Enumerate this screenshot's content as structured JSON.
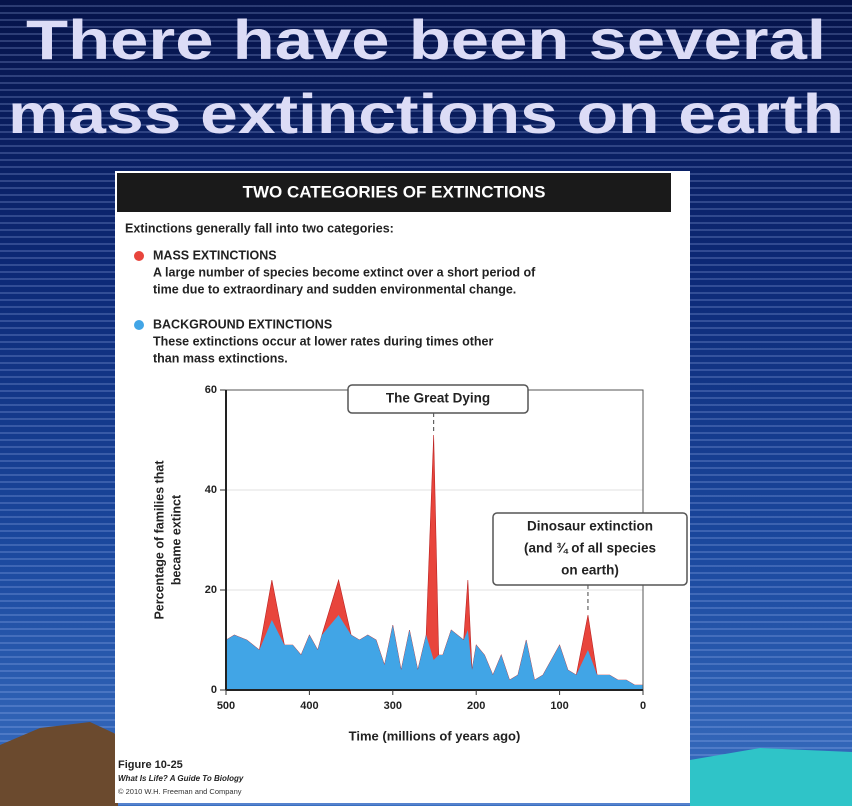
{
  "title": [
    "There have been several",
    "mass extinctions on earth"
  ],
  "chart_data": {
    "type": "area",
    "header": "TWO CATEGORIES OF EXTINCTIONS",
    "intro": "Extinctions generally fall into two categories:",
    "x": [
      500,
      490,
      475,
      460,
      445,
      430,
      420,
      410,
      400,
      390,
      385,
      365,
      350,
      340,
      330,
      320,
      310,
      300,
      290,
      280,
      270,
      260,
      251,
      245,
      240,
      230,
      215,
      210,
      205,
      200,
      190,
      180,
      170,
      160,
      150,
      140,
      130,
      120,
      100,
      90,
      80,
      66,
      55,
      40,
      30,
      20,
      10,
      0
    ],
    "series": [
      {
        "name": "MASS EXTINCTIONS",
        "color": "#e8453c",
        "description": [
          "A large number of species become extinct over a short period of",
          "time due to extraordinary and sudden environmental change."
        ],
        "values": [
          10,
          11,
          10,
          8,
          22,
          9,
          9,
          7,
          11,
          8,
          11,
          22,
          11,
          10,
          11,
          10,
          5,
          13,
          4,
          12,
          4,
          11,
          51,
          7,
          7,
          12,
          10,
          22,
          4,
          9,
          7,
          3,
          7,
          2,
          3,
          10,
          2,
          3,
          9,
          4,
          3,
          15,
          3,
          3,
          2,
          2,
          1,
          1
        ]
      },
      {
        "name": "BACKGROUND EXTINCTIONS",
        "color": "#41a5e6",
        "description": [
          "These extinctions occur at lower rates during times other",
          "than mass extinctions."
        ],
        "values": [
          10,
          11,
          10,
          8,
          14,
          9,
          9,
          7,
          11,
          8,
          11,
          15,
          11,
          10,
          11,
          10,
          5,
          13,
          4,
          12,
          4,
          11,
          6,
          7,
          7,
          12,
          10,
          12,
          4,
          9,
          7,
          3,
          7,
          2,
          3,
          10,
          2,
          3,
          9,
          4,
          3,
          8,
          3,
          3,
          2,
          2,
          1,
          1
        ]
      }
    ],
    "xlim": [
      500,
      0
    ],
    "ylim": [
      0,
      60
    ],
    "xticks": [
      500,
      400,
      300,
      200,
      100,
      0
    ],
    "yticks": [
      0,
      20,
      40,
      60
    ],
    "xlabel": "Time  (millions of years ago)",
    "ylabel": [
      "Percentage of families that",
      "became extinct"
    ],
    "annotations": [
      {
        "text": [
          "The Great Dying"
        ],
        "x": 251
      },
      {
        "text": [
          "Dinosaur extinction",
          "(and ¾ of all species",
          "on earth)"
        ],
        "x": 66
      }
    ],
    "figure_caption": "Figure 10-25",
    "source": "What Is Life? A Guide To Biology",
    "copyright": "© 2010 W.H. Freeman and Company"
  }
}
